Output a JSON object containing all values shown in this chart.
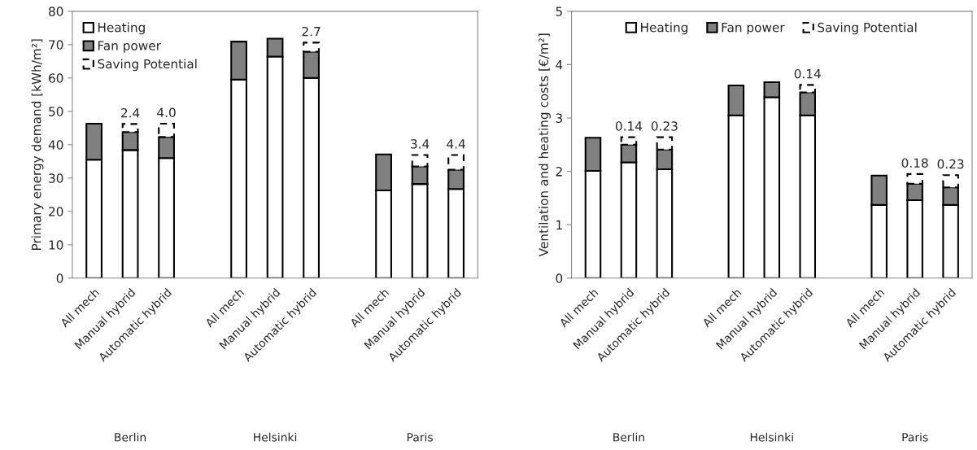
{
  "chart_data": [
    {
      "type": "bar",
      "stacked": true,
      "ylabel": "Primary energy demand [kWh/m²]",
      "categories": [
        "All mech",
        "Manual hybrid",
        "Automatic hybrid",
        null,
        "All mech",
        "Manual hybrid",
        "Automatic hybrid",
        null,
        "All mech",
        "Manual hybrid",
        "Automatic hybrid"
      ],
      "series": [
        {
          "name": "Heating",
          "color": "#ffffff",
          "line_style": "solid",
          "values": [
            35.5,
            38.4,
            36.0,
            null,
            59.5,
            66.4,
            60.0,
            null,
            26.3,
            28.2,
            26.7
          ]
        },
        {
          "name": "Fan power",
          "color": "#808080",
          "line_style": "solid",
          "values": [
            10.8,
            5.4,
            6.3,
            null,
            11.4,
            5.4,
            7.9,
            null,
            10.8,
            5.3,
            5.8
          ]
        },
        {
          "name": "Saving Potential",
          "color": "#ffffff",
          "line_style": "dashed",
          "values": [
            null,
            2.4,
            4.0,
            null,
            null,
            null,
            2.7,
            null,
            null,
            3.4,
            4.4
          ],
          "value_labels": [
            null,
            "2.4",
            "4.0",
            null,
            null,
            null,
            "2.7",
            null,
            null,
            "3.4",
            "4.4"
          ]
        }
      ],
      "ylim": [
        0,
        80
      ],
      "yticks": [
        0,
        10,
        20,
        30,
        40,
        50,
        60,
        70,
        80
      ],
      "legend": "top left",
      "grid": false,
      "annotations": [
        "Berlin",
        "Helsinki",
        "Paris"
      ]
    },
    {
      "type": "bar",
      "stacked": true,
      "ylabel": "Ventilation and heating costs [€/m²]",
      "categories": [
        "All mech",
        "Manual hybrid",
        "Automatic hybrid",
        null,
        "All mech",
        "Manual hybrid",
        "Automatic hybrid",
        null,
        "All mech",
        "Manual hybrid",
        "Automatic hybrid"
      ],
      "series": [
        {
          "name": "Heating",
          "color": "#ffffff",
          "line_style": "solid",
          "values": [
            2.01,
            2.17,
            2.04,
            null,
            3.05,
            3.39,
            3.05,
            null,
            1.37,
            1.46,
            1.37
          ]
        },
        {
          "name": "Fan power",
          "color": "#808080",
          "line_style": "solid",
          "values": [
            0.62,
            0.33,
            0.37,
            null,
            0.56,
            0.28,
            0.43,
            null,
            0.55,
            0.31,
            0.33
          ]
        },
        {
          "name": "Saving Potential",
          "color": "#ffffff",
          "line_style": "dashed",
          "values": [
            null,
            0.14,
            0.23,
            null,
            null,
            null,
            0.14,
            null,
            null,
            0.18,
            0.23
          ],
          "value_labels": [
            null,
            "0.14",
            "0.23",
            null,
            null,
            null,
            "0.14",
            null,
            null,
            "0.18",
            "0.23"
          ]
        }
      ],
      "ylim": [
        0,
        5
      ],
      "yticks": [
        0,
        1,
        2,
        3,
        4,
        5
      ],
      "legend": "top",
      "grid": false,
      "annotations": [
        "Berlin",
        "Helsinki",
        "Paris"
      ]
    }
  ]
}
